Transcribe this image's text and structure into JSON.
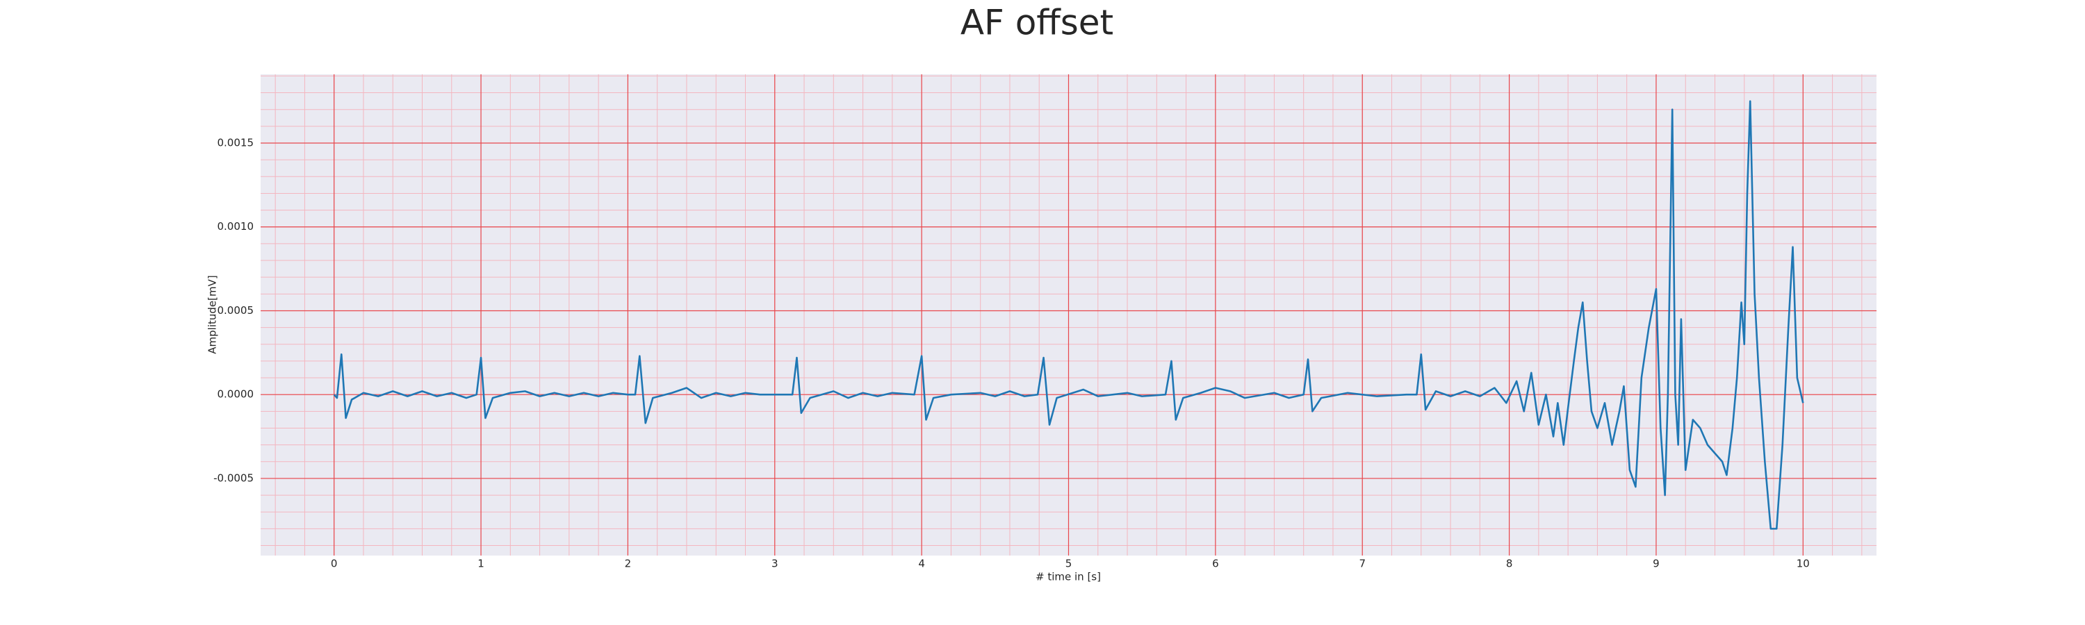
{
  "chart_data": {
    "type": "line",
    "title": "AF offset",
    "x_label": "# time in [s]",
    "y_label": "Amplitude[mV]",
    "xlim": [
      -0.5,
      10.5
    ],
    "ylim": [
      -0.00096,
      0.00191
    ],
    "xticks": [
      0,
      1,
      2,
      3,
      4,
      5,
      6,
      7,
      8,
      9,
      10
    ],
    "yticks": [
      {
        "value": -0.0005,
        "label": "-0.0005"
      },
      {
        "value": 0,
        "label": "0.0000"
      },
      {
        "value": 0.0005,
        "label": "0.0005"
      },
      {
        "value": 0.001,
        "label": "0.0010"
      },
      {
        "value": 0.0015,
        "label": "0.0015"
      }
    ],
    "grid": true,
    "grid_color": "#e8474c",
    "minor_grid": true,
    "minor_grid_color": "#f4b6bf",
    "background": "#eaeaf2",
    "series": [
      {
        "color": "#1f77b4",
        "x": [
          0.0,
          0.02,
          0.05,
          0.08,
          0.12,
          0.2,
          0.3,
          0.4,
          0.5,
          0.6,
          0.7,
          0.8,
          0.9,
          0.97,
          1.0,
          1.03,
          1.08,
          1.2,
          1.3,
          1.4,
          1.5,
          1.6,
          1.7,
          1.8,
          1.9,
          2.0,
          2.05,
          2.08,
          2.12,
          2.17,
          2.3,
          2.4,
          2.5,
          2.6,
          2.7,
          2.8,
          2.9,
          3.0,
          3.12,
          3.15,
          3.18,
          3.24,
          3.4,
          3.5,
          3.6,
          3.7,
          3.8,
          3.95,
          4.0,
          4.03,
          4.08,
          4.2,
          4.4,
          4.5,
          4.6,
          4.7,
          4.79,
          4.83,
          4.87,
          4.92,
          5.1,
          5.2,
          5.4,
          5.5,
          5.66,
          5.7,
          5.73,
          5.78,
          5.9,
          6.0,
          6.1,
          6.2,
          6.4,
          6.5,
          6.6,
          6.63,
          6.66,
          6.72,
          6.9,
          7.1,
          7.3,
          7.37,
          7.4,
          7.43,
          7.5,
          7.6,
          7.7,
          7.8,
          7.9,
          7.98,
          8.05,
          8.1,
          8.15,
          8.2,
          8.25,
          8.3,
          8.33,
          8.37,
          8.4,
          8.44,
          8.47,
          8.5,
          8.53,
          8.56,
          8.6,
          8.65,
          8.7,
          8.75,
          8.78,
          8.82,
          8.86,
          8.9,
          8.95,
          9.0,
          9.03,
          9.06,
          9.08,
          9.11,
          9.13,
          9.15,
          9.17,
          9.2,
          9.25,
          9.3,
          9.35,
          9.4,
          9.45,
          9.48,
          9.52,
          9.55,
          9.58,
          9.6,
          9.62,
          9.64,
          9.67,
          9.7,
          9.74,
          9.78,
          9.82,
          9.86,
          9.9,
          9.93,
          9.96,
          10.0
        ],
        "values": [
          0.0,
          -2e-05,
          0.00024,
          -0.00014,
          -3e-05,
          1e-05,
          -1e-05,
          2e-05,
          -1e-05,
          2e-05,
          -1e-05,
          1e-05,
          -2e-05,
          0.0,
          0.00022,
          -0.00014,
          -2e-05,
          1e-05,
          2e-05,
          -1e-05,
          1e-05,
          -1e-05,
          1e-05,
          -1e-05,
          1e-05,
          0.0,
          0.0,
          0.00023,
          -0.00017,
          -2e-05,
          1e-05,
          4e-05,
          -2e-05,
          1e-05,
          -1e-05,
          1e-05,
          0.0,
          0.0,
          0.0,
          0.00022,
          -0.00011,
          -2e-05,
          2e-05,
          -2e-05,
          1e-05,
          -1e-05,
          1e-05,
          0.0,
          0.00023,
          -0.00015,
          -2e-05,
          0.0,
          1e-05,
          -1e-05,
          2e-05,
          -1e-05,
          0.0,
          0.00022,
          -0.00018,
          -2e-05,
          3e-05,
          -1e-05,
          1e-05,
          -1e-05,
          0.0,
          0.0002,
          -0.00015,
          -2e-05,
          1e-05,
          4e-05,
          2e-05,
          -2e-05,
          1e-05,
          -2e-05,
          0.0,
          0.00021,
          -0.0001,
          -2e-05,
          1e-05,
          -1e-05,
          0.0,
          0.0,
          0.00024,
          -9e-05,
          2e-05,
          -1e-05,
          2e-05,
          -1e-05,
          4e-05,
          -5e-05,
          8e-05,
          -0.0001,
          0.00013,
          -0.00018,
          0.0,
          -0.00025,
          -5e-05,
          -0.0003,
          -8e-05,
          0.0002,
          0.0004,
          0.00055,
          0.0002,
          -0.0001,
          -0.0002,
          -5e-05,
          -0.0003,
          -0.0001,
          5e-05,
          -0.00045,
          -0.00055,
          0.0001,
          0.0004,
          0.00063,
          -0.0002,
          -0.0006,
          0.0,
          0.0017,
          0.0,
          -0.0003,
          0.00045,
          -0.00045,
          -0.00015,
          -0.0002,
          -0.0003,
          -0.00035,
          -0.0004,
          -0.00048,
          -0.0002,
          0.0001,
          0.00055,
          0.0003,
          0.0012,
          0.00175,
          0.0006,
          0.0001,
          -0.0004,
          -0.0008,
          -0.0008,
          -0.0003,
          0.0004,
          0.00088,
          0.0001,
          -5e-05
        ]
      }
    ]
  }
}
